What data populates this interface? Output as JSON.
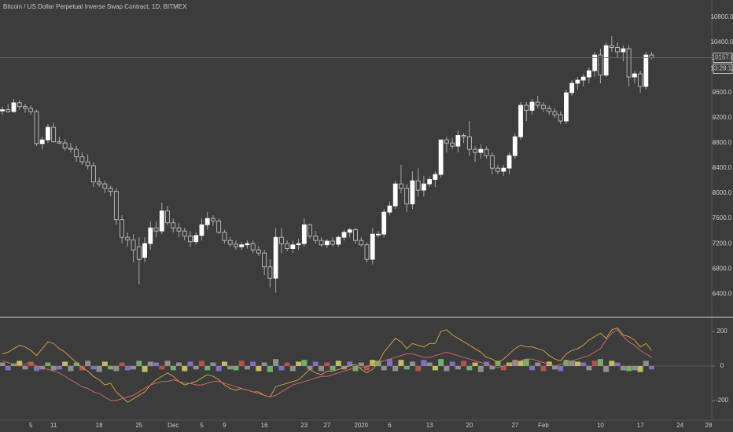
{
  "chart_data": [
    {
      "type": "candlestick",
      "title": "Bitcoin / US Dollar Perpetual Inverse Swap Contract, 1D, BITMEX",
      "categories": [
        null,
        null,
        null,
        null,
        null,
        "5",
        null,
        null,
        null,
        "11",
        null,
        null,
        null,
        null,
        null,
        null,
        null,
        "18",
        null,
        null,
        null,
        null,
        null,
        null,
        "25",
        null,
        null,
        null,
        null,
        null,
        "Dec",
        null,
        null,
        null,
        null,
        "5",
        null,
        null,
        null,
        "9",
        null,
        null,
        null,
        null,
        null,
        null,
        "16",
        null,
        null,
        null,
        null,
        null,
        null,
        "23",
        null,
        null,
        null,
        "27",
        null,
        null,
        null,
        null,
        null,
        "2020",
        null,
        null,
        null,
        null,
        "6",
        null,
        null,
        null,
        null,
        null,
        null,
        "13",
        null,
        null,
        null,
        null,
        null,
        null,
        "20",
        null,
        null,
        null,
        null,
        null,
        null,
        null,
        "27",
        null,
        null,
        null,
        null,
        "Feb",
        null,
        null,
        null,
        null,
        null,
        null,
        null,
        null,
        null,
        "10",
        null,
        null,
        null,
        null,
        null,
        null,
        "17",
        null,
        null,
        null,
        null,
        null,
        null,
        "24",
        null,
        null,
        null,
        null,
        "28"
      ],
      "open": [
        9310,
        9330,
        9300,
        9440,
        9380,
        9350,
        9300,
        8790,
        8850,
        9050,
        8820,
        8800,
        8720,
        8700,
        8580,
        8500,
        8440,
        8180,
        8150,
        8080,
        8030,
        7580,
        7300,
        7260,
        7150,
        6980,
        7200,
        7450,
        7400,
        7720,
        7530,
        7450,
        7400,
        7320,
        7230,
        7330,
        7500,
        7600,
        7560,
        7380,
        7250,
        7190,
        7150,
        7180,
        7200,
        7100,
        7050,
        6830,
        6650,
        7300,
        7200,
        7120,
        7180,
        7200,
        7500,
        7320,
        7250,
        7180,
        7240,
        7190,
        7300,
        7380,
        7420,
        7250,
        7180,
        6950,
        7350,
        7350,
        7700,
        7800,
        8150,
        8080,
        7830,
        8200,
        8050,
        8150,
        8220,
        8300,
        8850,
        8800,
        8750,
        8920,
        8900,
        8700,
        8650,
        8700,
        8600,
        8400,
        8350,
        8400,
        8600,
        8900,
        9400,
        9320,
        9450,
        9400,
        9350,
        9300,
        9250,
        9150,
        9600,
        9750,
        9800,
        9850,
        9950,
        10200,
        9880,
        10350,
        10320,
        10250,
        10300,
        9850,
        9900,
        9700,
        10200,
        null,
        null,
        null,
        null,
        null,
        null,
        null,
        null,
        null,
        null
      ],
      "high": [
        9380,
        9420,
        9500,
        9480,
        9420,
        9400,
        9330,
        8900,
        9100,
        9120,
        8900,
        8860,
        8800,
        8760,
        8650,
        8620,
        8500,
        8250,
        8200,
        8120,
        8080,
        7650,
        7380,
        7350,
        7300,
        7300,
        7550,
        7550,
        7850,
        7800,
        7600,
        7520,
        7450,
        7400,
        7380,
        7600,
        7700,
        7650,
        7600,
        7420,
        7300,
        7250,
        7220,
        7250,
        7250,
        7160,
        7100,
        6950,
        7450,
        7450,
        7250,
        7250,
        7280,
        7600,
        7520,
        7400,
        7300,
        7270,
        7300,
        7330,
        7420,
        7450,
        7450,
        7300,
        7220,
        7450,
        7400,
        7750,
        7870,
        8200,
        8450,
        8150,
        8350,
        8400,
        8280,
        8270,
        8350,
        8850,
        8900,
        8880,
        9000,
        8960,
        9150,
        8750,
        8780,
        8750,
        8650,
        8450,
        8450,
        8650,
        8950,
        9450,
        9450,
        9500,
        9550,
        9450,
        9400,
        9350,
        9300,
        9650,
        9800,
        9850,
        9900,
        10000,
        10250,
        10300,
        10400,
        10500,
        10400,
        10350,
        10350,
        9950,
        9950,
        10250,
        10250,
        null,
        null,
        null,
        null,
        null,
        null,
        null,
        null,
        null,
        null
      ],
      "low": [
        9250,
        9280,
        9280,
        9330,
        9280,
        9250,
        8750,
        8700,
        8800,
        8800,
        8780,
        8680,
        8650,
        8500,
        8450,
        8380,
        8100,
        8100,
        8000,
        7950,
        7500,
        7200,
        7150,
        6900,
        6550,
        6900,
        7100,
        7300,
        7350,
        7500,
        7380,
        7300,
        7250,
        7150,
        7180,
        7250,
        7420,
        7480,
        7350,
        7200,
        7150,
        7100,
        7100,
        7120,
        7050,
        7000,
        6700,
        6500,
        6420,
        7050,
        7080,
        7050,
        7100,
        7150,
        7280,
        7200,
        7150,
        7130,
        7150,
        7150,
        7250,
        7300,
        7200,
        7150,
        6900,
        6870,
        7300,
        7300,
        7650,
        7750,
        8000,
        7700,
        7750,
        7950,
        7950,
        8100,
        8100,
        8250,
        8650,
        8700,
        8650,
        8800,
        8600,
        8500,
        8550,
        8550,
        8300,
        8300,
        8280,
        8300,
        8550,
        8850,
        9150,
        9250,
        9350,
        9300,
        9250,
        9200,
        9100,
        9100,
        9550,
        9650,
        9700,
        9750,
        9850,
        9750,
        9850,
        10250,
        10150,
        10100,
        9700,
        9750,
        9600,
        9650,
        10130,
        null,
        null,
        null,
        null,
        null,
        null,
        null,
        null,
        null,
        null
      ],
      "close": [
        9330,
        9300,
        9440,
        9380,
        9350,
        9300,
        8790,
        8850,
        9050,
        8820,
        8800,
        8720,
        8700,
        8580,
        8500,
        8440,
        8180,
        8150,
        8080,
        8030,
        7580,
        7300,
        7260,
        7100,
        6950,
        7200,
        7450,
        7400,
        7720,
        7530,
        7450,
        7400,
        7320,
        7230,
        7330,
        7500,
        7600,
        7560,
        7380,
        7250,
        7190,
        7150,
        7180,
        7200,
        7100,
        7050,
        6830,
        6650,
        7300,
        7200,
        7120,
        7180,
        7200,
        7500,
        7320,
        7250,
        7180,
        7240,
        7190,
        7300,
        7380,
        7420,
        7250,
        7180,
        6950,
        7350,
        7350,
        7700,
        7800,
        8150,
        8080,
        7830,
        8200,
        8050,
        8150,
        8220,
        8300,
        8850,
        8800,
        8750,
        8920,
        8900,
        8700,
        8650,
        8700,
        8600,
        8400,
        8350,
        8400,
        8600,
        8900,
        9400,
        9320,
        9450,
        9400,
        9350,
        9300,
        9250,
        9150,
        9600,
        9750,
        9800,
        9850,
        9950,
        10200,
        9880,
        10350,
        10320,
        10250,
        10300,
        9850,
        9900,
        9700,
        10200,
        10157,
        null,
        null,
        null,
        null,
        null,
        null,
        null,
        null,
        null,
        null
      ],
      "up_color": "#ffffff",
      "down_color": "#3c3c3c",
      "price_label": "10157.0",
      "countdown": "13:28:10",
      "ylim": [
        6040,
        11075
      ],
      "yticks": [
        {
          "value": 6400,
          "label": "6400.0"
        },
        {
          "value": 6800,
          "label": "6800.0"
        },
        {
          "value": 7200,
          "label": "7200.0"
        },
        {
          "value": 7600,
          "label": "7600.0"
        },
        {
          "value": 8000,
          "label": "8000.0"
        },
        {
          "value": 8400,
          "label": "8400.0"
        },
        {
          "value": 8800,
          "label": "8800.0"
        },
        {
          "value": 9200,
          "label": "9200.0"
        },
        {
          "value": 9600,
          "label": "9600.0"
        },
        {
          "value": 10400,
          "label": "10400.0"
        },
        {
          "value": 10800,
          "label": "10800.0"
        }
      ]
    },
    {
      "type": "line",
      "series": [
        {
          "color": "#d9a84e",
          "values": [
            70,
            80,
            100,
            120,
            110,
            90,
            60,
            100,
            140,
            130,
            100,
            80,
            50,
            20,
            -10,
            -30,
            -60,
            -80,
            -110,
            -100,
            -150,
            -180,
            -210,
            -190,
            -170,
            -150,
            -110,
            -80,
            -60,
            -40,
            -60,
            -90,
            -110,
            -100,
            -90,
            -70,
            -50,
            -60,
            -80,
            -110,
            -130,
            -140,
            -130,
            -140,
            -150,
            -150,
            -170,
            -180,
            -120,
            -110,
            -100,
            -90,
            -80,
            -50,
            -20,
            -40,
            -50,
            -30,
            -30,
            -20,
            -10,
            0,
            10,
            -20,
            -40,
            -20,
            20,
            80,
            120,
            160,
            140,
            100,
            130,
            120,
            110,
            130,
            130,
            200,
            210,
            180,
            160,
            140,
            120,
            100,
            80,
            50,
            40,
            20,
            40,
            70,
            100,
            120,
            110,
            110,
            100,
            90,
            60,
            40,
            30,
            70,
            90,
            100,
            120,
            150,
            170,
            190,
            160,
            210,
            220,
            180,
            170,
            150,
            110,
            130,
            90,
            null,
            null,
            null,
            null,
            null,
            null,
            null,
            null,
            null,
            null
          ]
        },
        {
          "color": "#d96a6a",
          "values": [
            30,
            20,
            10,
            0,
            10,
            20,
            0,
            -10,
            -20,
            -30,
            -40,
            -60,
            -80,
            -100,
            -120,
            -130,
            -150,
            -160,
            -180,
            -200,
            -200,
            -190,
            -180,
            -170,
            -150,
            -130,
            -110,
            -100,
            -90,
            -90,
            -80,
            -90,
            -100,
            -100,
            -110,
            -110,
            -100,
            -90,
            -90,
            -100,
            -110,
            -120,
            -130,
            -140,
            -150,
            -160,
            -170,
            -180,
            -170,
            -150,
            -130,
            -110,
            -100,
            -90,
            -80,
            -70,
            -60,
            -60,
            -50,
            -40,
            -30,
            -20,
            -10,
            -10,
            0,
            10,
            20,
            30,
            40,
            50,
            60,
            70,
            70,
            60,
            50,
            50,
            60,
            70,
            80,
            70,
            60,
            50,
            40,
            30,
            20,
            10,
            0,
            -10,
            0,
            10,
            20,
            30,
            40,
            40,
            30,
            20,
            10,
            0,
            10,
            20,
            30,
            40,
            50,
            60,
            80,
            100,
            150,
            190,
            210,
            170,
            140,
            120,
            90,
            70,
            50,
            null,
            null,
            null,
            null,
            null,
            null,
            null,
            null,
            null,
            null
          ]
        }
      ],
      "bars": {
        "values": [
          20,
          -25,
          15,
          30,
          -20,
          25,
          -30,
          -20,
          20,
          -25,
          -20,
          25,
          -30,
          20,
          -25,
          30,
          -20,
          -35,
          25,
          -20,
          -30,
          20,
          -25,
          -20,
          30,
          -35,
          25,
          20,
          -20,
          30,
          -25,
          20,
          -30,
          25,
          -20,
          30,
          -25,
          20,
          -30,
          25,
          -20,
          -25,
          30,
          -20,
          25,
          -30,
          20,
          -35,
          40,
          -25,
          20,
          -30,
          25,
          35,
          -20,
          25,
          -30,
          20,
          -25,
          30,
          -20,
          25,
          -30,
          20,
          -25,
          35,
          30,
          -25,
          40,
          -30,
          35,
          -20,
          25,
          -30,
          35,
          20,
          -25,
          40,
          -30,
          25,
          -20,
          30,
          -25,
          20,
          -35,
          25,
          -20,
          30,
          -25,
          20,
          35,
          30,
          40,
          -25,
          20,
          -30,
          25,
          -20,
          -30,
          35,
          30,
          25,
          20,
          -25,
          30,
          40,
          -35,
          30,
          20,
          -25,
          -30,
          -25,
          -35,
          30,
          -20,
          null,
          null,
          null,
          null,
          null,
          null,
          null,
          null,
          null,
          null
        ],
        "colors": [
          "#999",
          "#87c",
          "#7b7",
          "#cc6",
          "#999",
          "#b55",
          "#87c",
          "#999",
          "#7b7",
          "#999",
          "#87c",
          "#cc6",
          "#999",
          "#7b7",
          "#b55",
          "#999",
          "#87c",
          "#999",
          "#cc6",
          "#7b7",
          "#999",
          "#b55",
          "#87c",
          "#999",
          "#7b7",
          "#cc6",
          "#999",
          "#87c",
          "#b55",
          "#999",
          "#7b7",
          "#999",
          "#cc6",
          "#87c",
          "#999",
          "#b55",
          "#7b7",
          "#999",
          "#87c",
          "#cc6",
          "#999",
          "#7b7",
          "#b55",
          "#999",
          "#87c",
          "#cc6",
          "#999",
          "#7b7",
          "#999",
          "#87c",
          "#b55",
          "#999",
          "#cc6",
          "#7b7",
          "#999",
          "#87c",
          "#999",
          "#b55",
          "#7b7",
          "#cc6",
          "#999",
          "#87c",
          "#7b7",
          "#999",
          "#b55",
          "#cc6",
          "#7b7",
          "#999",
          "#87c",
          "#999",
          "#cc6",
          "#7b7",
          "#999",
          "#b55",
          "#87c",
          "#999",
          "#cc6",
          "#7b7",
          "#999",
          "#87c",
          "#999",
          "#b55",
          "#7b7",
          "#cc6",
          "#999",
          "#87c",
          "#999",
          "#7b7",
          "#b55",
          "#cc6",
          "#999",
          "#cc6",
          "#7b7",
          "#87c",
          "#999",
          "#b55",
          "#cc6",
          "#999",
          "#87c",
          "#7b7",
          "#999",
          "#cc6",
          "#87c",
          "#999",
          "#b55",
          "#7b7",
          "#999",
          "#cc6",
          "#87c",
          "#999",
          "#7b7",
          "#999",
          "#cc6",
          "#999",
          "#87c",
          null,
          null,
          null,
          null,
          null,
          null,
          null,
          null,
          null,
          null
        ]
      },
      "ylim": [
        -314,
        277
      ],
      "yticks": [
        -200,
        0,
        200
      ]
    }
  ]
}
